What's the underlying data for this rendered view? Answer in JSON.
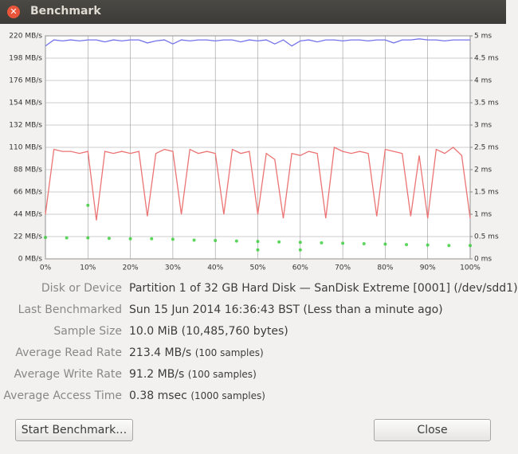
{
  "window": {
    "title": "Benchmark"
  },
  "chart_data": {
    "type": "line",
    "grid": true,
    "x": [
      0,
      2,
      4,
      6,
      8,
      10,
      12,
      14,
      16,
      18,
      20,
      22,
      24,
      26,
      28,
      30,
      32,
      34,
      36,
      38,
      40,
      42,
      44,
      46,
      48,
      50,
      52,
      54,
      56,
      58,
      60,
      62,
      64,
      66,
      68,
      70,
      72,
      74,
      76,
      78,
      80,
      82,
      84,
      86,
      88,
      90,
      92,
      94,
      96,
      98,
      100
    ],
    "xlim": [
      0,
      100
    ],
    "xticks": [
      {
        "value": 0,
        "label": "0%"
      },
      {
        "value": 10,
        "label": "10%"
      },
      {
        "value": 20,
        "label": "20%"
      },
      {
        "value": 30,
        "label": "30%"
      },
      {
        "value": 40,
        "label": "40%"
      },
      {
        "value": 50,
        "label": "50%"
      },
      {
        "value": 60,
        "label": "60%"
      },
      {
        "value": 70,
        "label": "70%"
      },
      {
        "value": 80,
        "label": "80%"
      },
      {
        "value": 90,
        "label": "90%"
      },
      {
        "value": 100,
        "label": "100%"
      }
    ],
    "ylim": [
      0,
      220
    ],
    "yticks": [
      {
        "value": 0,
        "label": "0 MB/s"
      },
      {
        "value": 22,
        "label": "22 MB/s"
      },
      {
        "value": 44,
        "label": "44 MB/s"
      },
      {
        "value": 66,
        "label": "66 MB/s"
      },
      {
        "value": 88,
        "label": "88 MB/s"
      },
      {
        "value": 110,
        "label": "110 MB/s"
      },
      {
        "value": 132,
        "label": "132 MB/s"
      },
      {
        "value": 154,
        "label": "154 MB/s"
      },
      {
        "value": 176,
        "label": "176 MB/s"
      },
      {
        "value": 198,
        "label": "198 MB/s"
      },
      {
        "value": 220,
        "label": "220 MB/s"
      }
    ],
    "y2lim": [
      0,
      5
    ],
    "y2ticks": [
      {
        "value": 0,
        "label": "0 ms"
      },
      {
        "value": 0.5,
        "label": "0.5 ms"
      },
      {
        "value": 1,
        "label": "1 ms"
      },
      {
        "value": 1.5,
        "label": "1.5 ms"
      },
      {
        "value": 2,
        "label": "2 ms"
      },
      {
        "value": 2.5,
        "label": "2.5 ms"
      },
      {
        "value": 3,
        "label": "3 ms"
      },
      {
        "value": 3.5,
        "label": "3.5 ms"
      },
      {
        "value": 4,
        "label": "4 ms"
      },
      {
        "value": 4.5,
        "label": "4.5 ms"
      },
      {
        "value": 5,
        "label": "5 ms"
      }
    ],
    "series": [
      {
        "type": "line",
        "color": "#7373ec",
        "values": [
          210,
          216,
          215,
          216,
          215,
          216,
          216,
          214,
          216,
          215,
          216,
          216,
          213,
          215,
          216,
          212,
          216,
          215,
          216,
          216,
          215,
          216,
          216,
          214,
          216,
          215,
          216,
          212,
          216,
          210,
          215,
          216,
          214,
          216,
          216,
          215,
          216,
          216,
          215,
          216,
          216,
          213,
          216,
          216,
          217,
          216,
          216,
          215,
          216,
          216,
          216
        ]
      },
      {
        "type": "line",
        "color": "#ec7373",
        "values": [
          44,
          108,
          106,
          106,
          104,
          106,
          38,
          106,
          104,
          106,
          104,
          106,
          42,
          104,
          108,
          106,
          44,
          108,
          104,
          106,
          104,
          44,
          108,
          104,
          106,
          44,
          104,
          98,
          40,
          104,
          102,
          106,
          104,
          40,
          110,
          106,
          104,
          106,
          104,
          42,
          108,
          106,
          104,
          42,
          102,
          40,
          108,
          104,
          110,
          102,
          40
        ]
      },
      {
        "type": "scatter",
        "axis": "y2",
        "color": "#33cc33",
        "x": [
          0,
          5,
          10,
          15,
          20,
          25,
          30,
          35,
          40,
          45,
          50,
          55,
          60,
          65,
          70,
          75,
          80,
          85,
          90,
          95,
          100,
          10,
          50,
          60
        ],
        "values": [
          0.48,
          0.47,
          0.47,
          0.46,
          0.45,
          0.45,
          0.44,
          0.42,
          0.41,
          0.4,
          0.39,
          0.38,
          0.37,
          0.36,
          0.35,
          0.34,
          0.33,
          0.32,
          0.31,
          0.3,
          0.3,
          1.2,
          0.2,
          0.2
        ]
      }
    ]
  },
  "info": [
    {
      "label": "Disk or Device",
      "value": "Partition 1 of 32 GB Hard Disk — SanDisk Extreme [0001] (/dev/sdd1)"
    },
    {
      "label": "Last Benchmarked",
      "value": "Sun 15 Jun 2014 16:36:43 BST (Less than a minute ago)"
    },
    {
      "label": "Sample Size",
      "value": "10.0 MiB (10,485,760 bytes)"
    },
    {
      "label": "Average Read Rate",
      "value": "213.4 MB/s",
      "note": "(100 samples)"
    },
    {
      "label": "Average Write Rate",
      "value": "91.2 MB/s",
      "note": "(100 samples)"
    },
    {
      "label": "Average Access Time",
      "value": "0.38 msec",
      "note": "(1000 samples)"
    }
  ],
  "buttons": [
    "Start Benchmark…",
    "Close"
  ]
}
